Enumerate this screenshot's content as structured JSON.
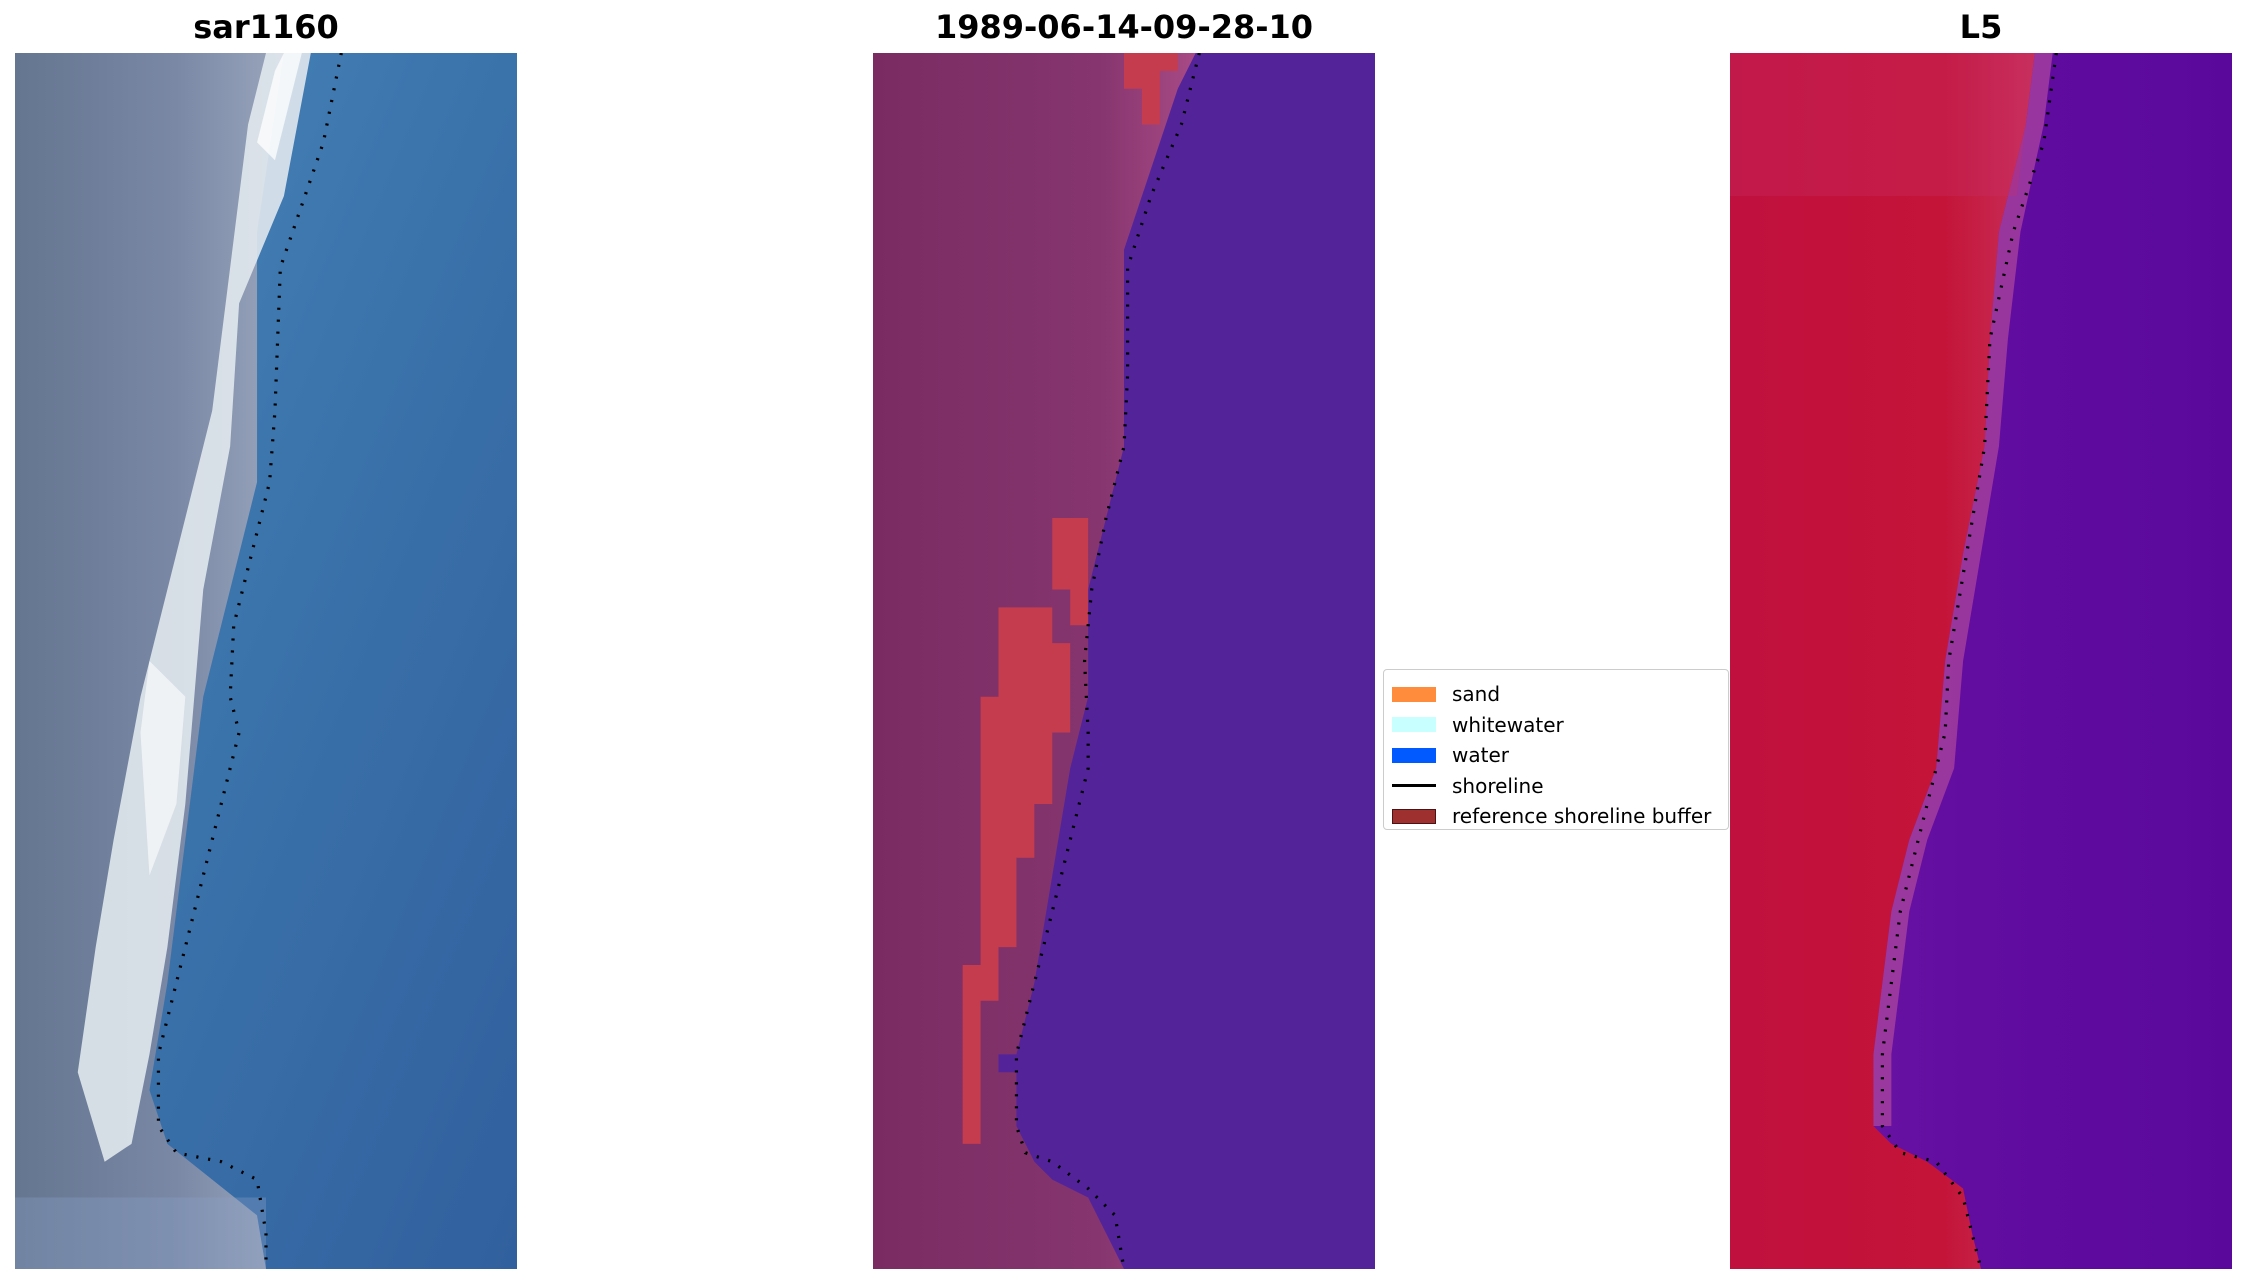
{
  "panels": [
    {
      "title": "sar1160",
      "kind": "rgb"
    },
    {
      "title": "1989-06-14-09-28-10",
      "kind": "classified"
    },
    {
      "title": "L5",
      "kind": "index"
    }
  ],
  "legend": {
    "items": [
      {
        "label": "sand",
        "type": "patch",
        "color": "#ff8c3c"
      },
      {
        "label": "whitewater",
        "type": "patch",
        "color": "#c8ffff"
      },
      {
        "label": "water",
        "type": "patch",
        "color": "#005aff"
      },
      {
        "label": "shoreline",
        "type": "line",
        "color": "#000000"
      },
      {
        "label": "reference shoreline buffer",
        "type": "patch",
        "color": "#9e3030"
      }
    ]
  },
  "colors": {
    "land_rgb": "#6e7d9a",
    "surf_rgb": "#e8eef2",
    "water_rgb": "#3a72aa",
    "land_class": "#7d2e66",
    "water_class": "#53239a",
    "buffer_class": "#c43c4e",
    "land_index": "#c4103a",
    "water_index": "#5e0a9e"
  }
}
